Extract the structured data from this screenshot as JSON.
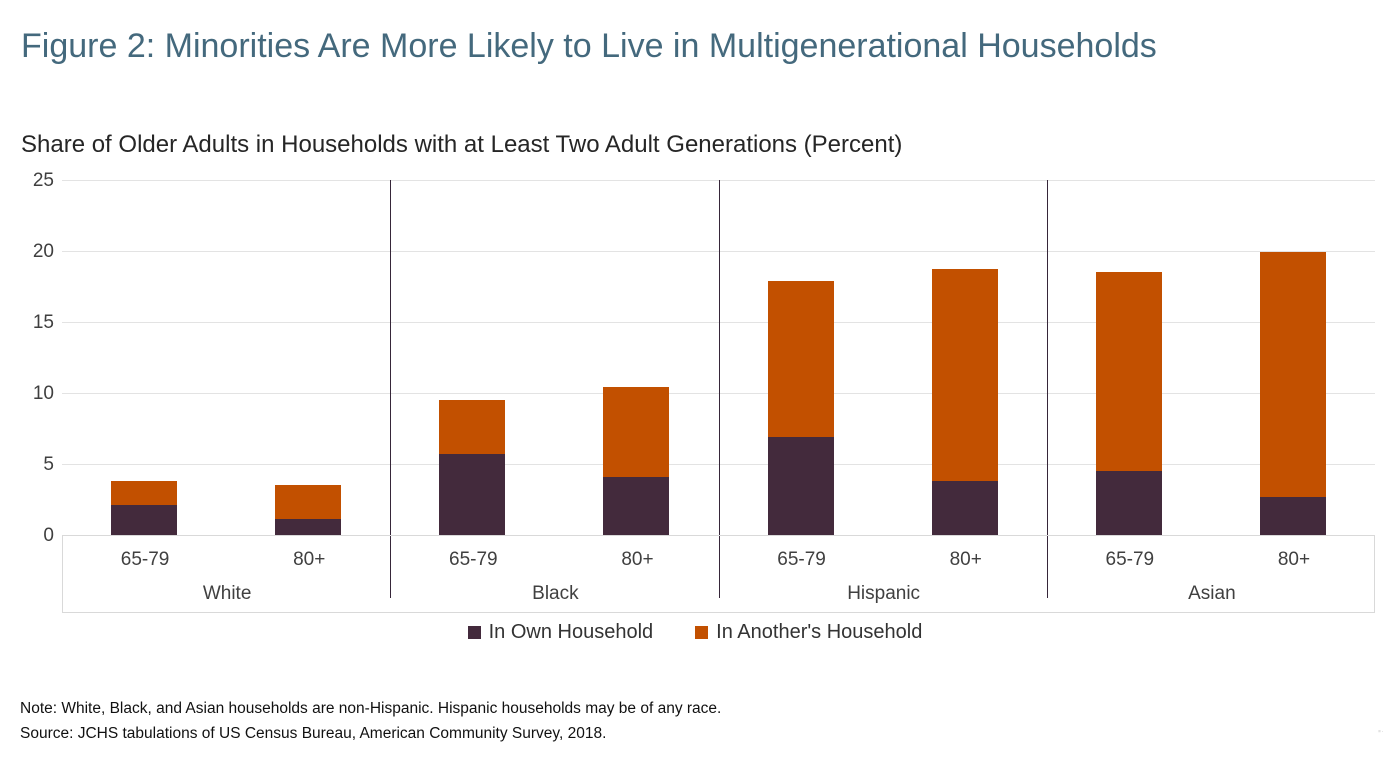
{
  "figure": {
    "title": "Figure 2: Minorities Are More Likely to Live in Multigenerational Households",
    "subtitle": "Share of Older Adults in Households with at Least Two Adult Generations (Percent)",
    "note": "Note: White, Black, and Asian households are non-Hispanic. Hispanic households may be of any race.",
    "source": "Source: JCHS tabulations of US Census Bureau, American Community Survey, 2018.",
    "title_color": "#44697D"
  },
  "legend": {
    "items": [
      {
        "label": "In Own Household",
        "color": "#432A3C"
      },
      {
        "label": "In Another's Household",
        "color": "#C25000"
      }
    ]
  },
  "chart_data": {
    "type": "bar",
    "stacked": true,
    "title": "Figure 2: Minorities Are More Likely to Live in Multigenerational Households",
    "subtitle": "Share of Older Adults in Households with at Least Two Adult Generations (Percent)",
    "groups": [
      "White",
      "Black",
      "Hispanic",
      "Asian"
    ],
    "age_categories": [
      "65-79",
      "80+"
    ],
    "categories": [
      "White 65-79",
      "White 80+",
      "Black 65-79",
      "Black 80+",
      "Hispanic 65-79",
      "Hispanic 80+",
      "Asian 65-79",
      "Asian 80+"
    ],
    "series": [
      {
        "name": "In Own Household",
        "color": "#432A3C",
        "values": [
          2.1,
          1.1,
          5.7,
          4.1,
          6.9,
          3.8,
          4.5,
          2.7
        ]
      },
      {
        "name": "In Another's Household",
        "color": "#C25000",
        "values": [
          1.7,
          2.4,
          3.8,
          6.3,
          11.0,
          14.9,
          14.0,
          17.2
        ]
      }
    ],
    "stack_totals": [
      3.8,
      3.5,
      9.5,
      10.4,
      17.9,
      18.7,
      18.5,
      19.9
    ],
    "xlabel": "",
    "ylabel": "",
    "ylim": [
      0,
      25
    ],
    "yticks": [
      0,
      5,
      10,
      15,
      20,
      25
    ],
    "grid": "horizontal",
    "legend_position": "bottom",
    "colors": {
      "gridline": "#e3e3e3",
      "axis_band_border": "#d9d9d9",
      "group_separator": "#362639"
    }
  }
}
